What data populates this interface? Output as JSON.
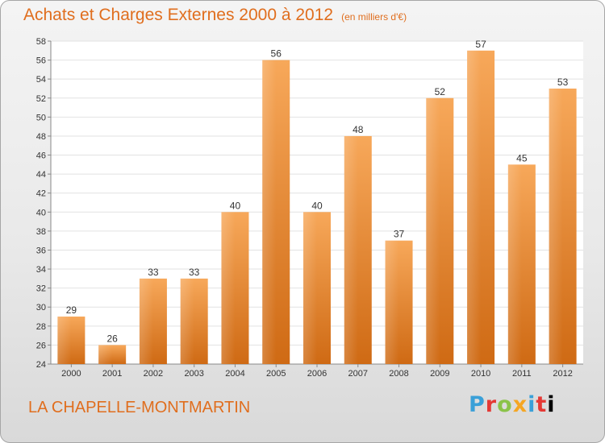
{
  "title": "Achats et Charges Externes 2000 à 2012",
  "unit_note": "(en milliers d'€)",
  "location": "LA CHAPELLE-MONTMARTIN",
  "logo": {
    "text": "Proxiti",
    "letters": [
      "P",
      "r",
      "o",
      "x",
      "i",
      "t",
      "i"
    ]
  },
  "colors": {
    "accent": "#e06e1e",
    "bar_top": "#f7a85a",
    "bar_bottom": "#cf6a14"
  },
  "chart_data": {
    "type": "bar",
    "title": "Achats et Charges Externes 2000 à 2012",
    "subtitle": "(en milliers d'€)",
    "xlabel": "",
    "ylabel": "",
    "categories": [
      "2000",
      "2001",
      "2002",
      "2003",
      "2004",
      "2005",
      "2006",
      "2007",
      "2008",
      "2009",
      "2010",
      "2011",
      "2012"
    ],
    "values": [
      29,
      26,
      33,
      33,
      40,
      56,
      40,
      48,
      37,
      52,
      57,
      45,
      53
    ],
    "data_labels": [
      "29",
      "26",
      "33",
      "33",
      "40",
      "56",
      "40",
      "48",
      "37",
      "52",
      "57",
      "45",
      "53"
    ],
    "ylim": [
      24,
      58
    ],
    "yticks": [
      "24",
      "26",
      "28",
      "30",
      "32",
      "34",
      "36",
      "38",
      "40",
      "42",
      "44",
      "46",
      "48",
      "50",
      "52",
      "54",
      "56",
      "58"
    ],
    "grid": true
  }
}
